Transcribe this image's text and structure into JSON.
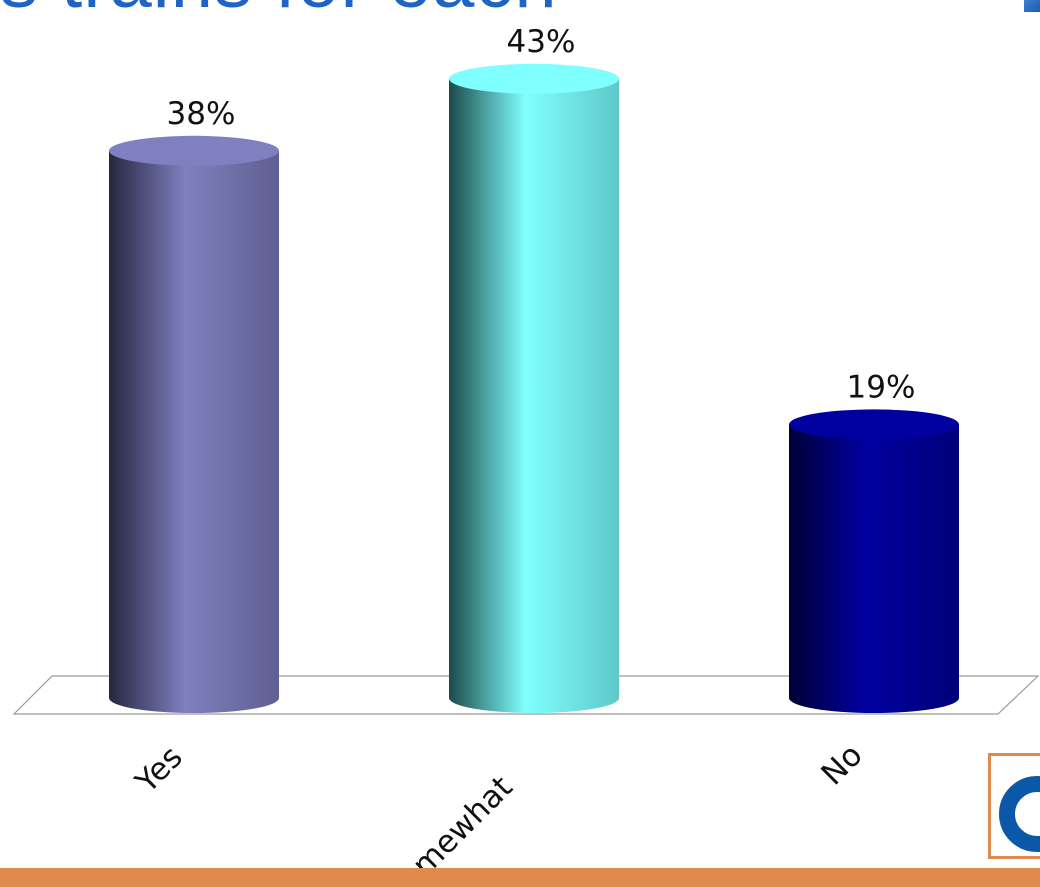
{
  "slide": {
    "title": "s trains for each",
    "colors": {
      "title": "#1f64c4",
      "bottom_bar": "#e08b4e",
      "logo": "#0b57a8"
    }
  },
  "chart_data": {
    "type": "bar",
    "style": "3d-cylinder",
    "categories": [
      "Yes",
      "Somewhat",
      "No"
    ],
    "values": [
      38,
      43,
      19
    ],
    "value_labels": [
      "38%",
      "43%",
      "19%"
    ],
    "colors": [
      "#8080c0",
      "#80ffff",
      "#0000a0"
    ],
    "title": "",
    "xlabel": "",
    "ylabel": "",
    "ylim": [
      0,
      43
    ],
    "grid": false,
    "legend": "none"
  }
}
